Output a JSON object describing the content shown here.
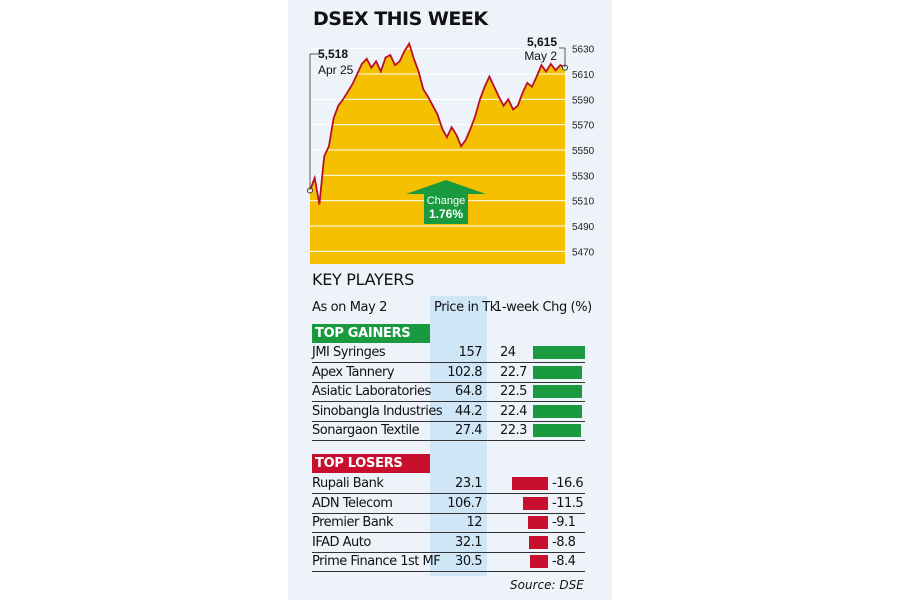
{
  "title": "DSEX THIS WEEK",
  "chart_data": {
    "type": "area",
    "ylim": [
      5460,
      5640
    ],
    "yticks": [
      5470,
      5490,
      5510,
      5530,
      5550,
      5570,
      5590,
      5610,
      5630
    ],
    "values": [
      5518,
      5528,
      5507,
      5545,
      5553,
      5575,
      5585,
      5590,
      5596,
      5602,
      5610,
      5618,
      5622,
      5615,
      5620,
      5612,
      5623,
      5625,
      5617,
      5620,
      5628,
      5634,
      5622,
      5612,
      5598,
      5592,
      5585,
      5578,
      5567,
      5560,
      5568,
      5562,
      5553,
      5558,
      5567,
      5577,
      5590,
      5600,
      5608,
      5600,
      5592,
      5585,
      5590,
      5582,
      5585,
      5595,
      5603,
      5600,
      5608,
      5617,
      5612,
      5618,
      5613,
      5617,
      5615
    ],
    "start": {
      "value": "5,518",
      "date": "Apr 25"
    },
    "end": {
      "value": "5,615",
      "date": "May 2"
    },
    "change": {
      "label": "Change",
      "value": "1.76%"
    },
    "colors": {
      "area": "#f5c000",
      "line": "#b8102a",
      "arrow": "#1a9a3f",
      "grid": "#ffffff"
    }
  },
  "key_players": {
    "title": "KEY PLAYERS",
    "as_on": "As on May 2",
    "price_header": "Price in Tk",
    "chg_header": "1-week Chg (%)",
    "gainers_label": "TOP GAINERS",
    "losers_label": "TOP LOSERS",
    "gainer_color": "#1a9a3f",
    "loser_color": "#c8102e",
    "gainers": [
      {
        "name": "JMI Syringes",
        "price": "157",
        "chg": "24",
        "value": 24
      },
      {
        "name": "Apex Tannery",
        "price": "102.8",
        "chg": "22.7",
        "value": 22.7
      },
      {
        "name": "Asiatic Laboratories",
        "price": "64.8",
        "chg": "22.5",
        "value": 22.5
      },
      {
        "name": "Sinobangla Industries",
        "price": "44.2",
        "chg": "22.4",
        "value": 22.4
      },
      {
        "name": "Sonargaon Textile",
        "price": "27.4",
        "chg": "22.3",
        "value": 22.3
      }
    ],
    "losers": [
      {
        "name": "Rupali Bank",
        "price": "23.1",
        "chg": "-16.6",
        "value": -16.6
      },
      {
        "name": "ADN Telecom",
        "price": "106.7",
        "chg": "-11.5",
        "value": -11.5
      },
      {
        "name": "Premier Bank",
        "price": "12",
        "chg": "-9.1",
        "value": -9.1
      },
      {
        "name": "IFAD Auto",
        "price": "32.1",
        "chg": "-8.8",
        "value": -8.8
      },
      {
        "name": "Prime Finance 1st MF",
        "price": "30.5",
        "chg": "-8.4",
        "value": -8.4
      }
    ]
  },
  "source": "Source: DSE"
}
